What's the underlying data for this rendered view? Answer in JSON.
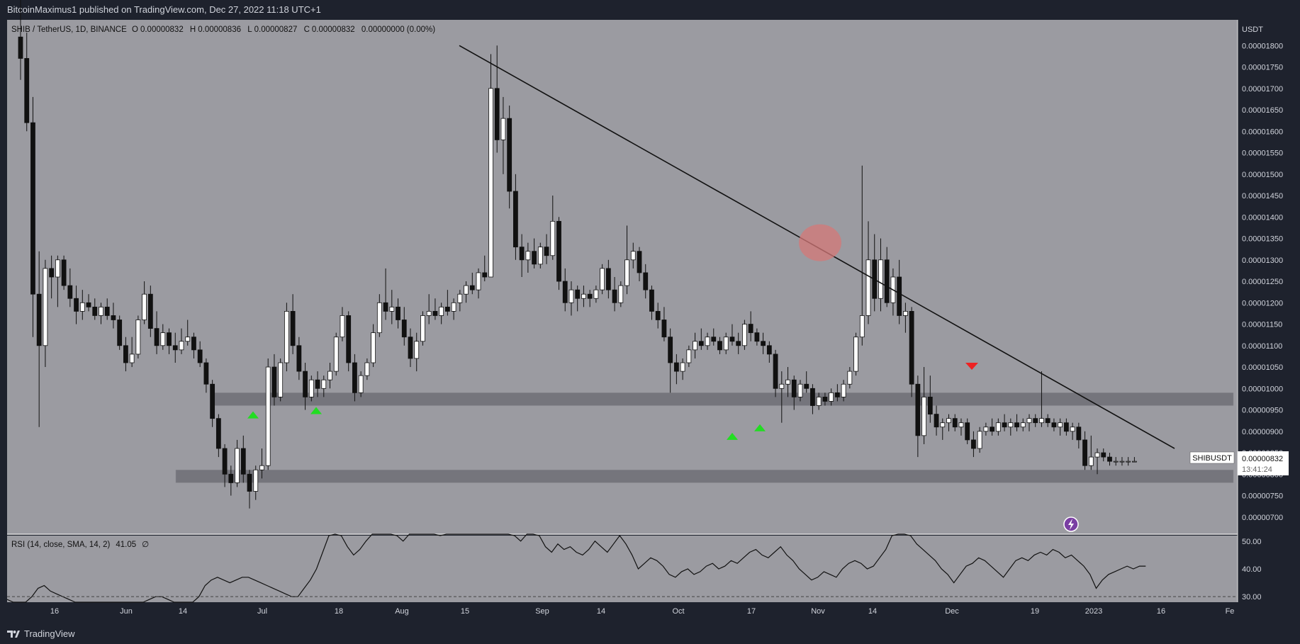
{
  "header": {
    "published_line": "BitcoinMaximus1 published on TradingView.com, Dec 27, 2022 11:18 UTC+1"
  },
  "legend": {
    "symbol": "SHIB / TetherUS, 1D, BINANCE",
    "o_label": "O",
    "o": "0.00000832",
    "h_label": "H",
    "h": "0.00000836",
    "l_label": "L",
    "l": "0.00000827",
    "c_label": "C",
    "c": "0.00000832",
    "change": "0.00000000 (0.00%)"
  },
  "price_scale": {
    "unit": "USDT",
    "labels": [
      "0.00001800",
      "0.00001750",
      "0.00001700",
      "0.00001650",
      "0.00001600",
      "0.00001550",
      "0.00001500",
      "0.00001450",
      "0.00001400",
      "0.00001350",
      "0.00001300",
      "0.00001250",
      "0.00001200",
      "0.00001150",
      "0.00001100",
      "0.00001050",
      "0.00001000",
      "0.00000950",
      "0.00000900",
      "0.00000850",
      "0.00000800",
      "0.00000750",
      "0.00000700"
    ]
  },
  "last_price": {
    "ticker": "SHIBUSDT",
    "price": "0.00000832",
    "countdown": "13:41:24"
  },
  "rsi": {
    "legend": "RSI (14, close, SMA, 14, 2)",
    "value": "41.05",
    "extra": "∅",
    "scale": [
      "50.00",
      "40.00",
      "30.00"
    ]
  },
  "time_axis": [
    "16",
    "Jun",
    "14",
    "Jul",
    "18",
    "Aug",
    "15",
    "Sep",
    "14",
    "Oct",
    "17",
    "Nov",
    "14",
    "Dec",
    "19",
    "2023",
    "16",
    "Fe"
  ],
  "footer": {
    "brand": "TradingView"
  },
  "colors": {
    "pane_bg": "#9b9ba1",
    "up": "#ffffff",
    "down": "#111111",
    "support_zone": "#6f6f75",
    "buy_arrow": "#22dd22",
    "sell_arrow": "#ee2222",
    "highlight": "#d47878"
  },
  "chart_data": {
    "type": "candlestick",
    "symbol": "SHIB / TetherUS",
    "interval": "1D",
    "exchange": "BINANCE",
    "ylim": [
      6.6e-06,
      1.86e-05
    ],
    "y_unit": "USDT",
    "candles": [
      [
        1.82e-05,
        1.95e-05,
        1.72e-05,
        1.77e-05
      ],
      [
        1.77e-05,
        1.83e-05,
        1.6e-05,
        1.62e-05
      ],
      [
        1.62e-05,
        1.68e-05,
        1.12e-05,
        1.22e-05
      ],
      [
        1.22e-05,
        1.32e-05,
        9.1e-06,
        1.1e-05
      ],
      [
        1.1e-05,
        1.3e-05,
        1.05e-05,
        1.28e-05
      ],
      [
        1.28e-05,
        1.31e-05,
        1.21e-05,
        1.26e-05
      ],
      [
        1.26e-05,
        1.31e-05,
        1.19e-05,
        1.3e-05
      ],
      [
        1.3e-05,
        1.31e-05,
        1.23e-05,
        1.24e-05
      ],
      [
        1.24e-05,
        1.28e-05,
        1.19e-05,
        1.21e-05
      ],
      [
        1.21e-05,
        1.24e-05,
        1.15e-05,
        1.18e-05
      ],
      [
        1.18e-05,
        1.23e-05,
        1.16e-05,
        1.2e-05
      ],
      [
        1.2e-05,
        1.22e-05,
        1.18e-05,
        1.19e-05
      ],
      [
        1.19e-05,
        1.21e-05,
        1.16e-05,
        1.17e-05
      ],
      [
        1.17e-05,
        1.2e-05,
        1.15e-05,
        1.19e-05
      ],
      [
        1.19e-05,
        1.21e-05,
        1.16e-05,
        1.17e-05
      ],
      [
        1.17e-05,
        1.2e-05,
        1.14e-05,
        1.16e-05
      ],
      [
        1.16e-05,
        1.17e-05,
        1.09e-05,
        1.1e-05
      ],
      [
        1.1e-05,
        1.12e-05,
        1.04e-05,
        1.06e-05
      ],
      [
        1.06e-05,
        1.12e-05,
        1.05e-05,
        1.08e-05
      ],
      [
        1.08e-05,
        1.17e-05,
        1.07e-05,
        1.16e-05
      ],
      [
        1.16e-05,
        1.25e-05,
        1.15e-05,
        1.22e-05
      ],
      [
        1.22e-05,
        1.24e-05,
        1.12e-05,
        1.14e-05
      ],
      [
        1.14e-05,
        1.18e-05,
        1.08e-05,
        1.1e-05
      ],
      [
        1.1e-05,
        1.15e-05,
        1.09e-05,
        1.13e-05
      ],
      [
        1.13e-05,
        1.14e-05,
        1.08e-05,
        1.1e-05
      ],
      [
        1.1e-05,
        1.13e-05,
        1.06e-05,
        1.09e-05
      ],
      [
        1.09e-05,
        1.14e-05,
        1.08e-05,
        1.11e-05
      ],
      [
        1.11e-05,
        1.16e-05,
        1.1e-05,
        1.12e-05
      ],
      [
        1.12e-05,
        1.13e-05,
        1.07e-05,
        1.09e-05
      ],
      [
        1.09e-05,
        1.11e-05,
        1.05e-05,
        1.06e-05
      ],
      [
        1.06e-05,
        1.07e-05,
        9.9e-06,
        1.01e-05
      ],
      [
        1.01e-05,
        1.02e-05,
        9.1e-06,
        9.3e-06
      ],
      [
        9.3e-06,
        9.4e-06,
        8.4e-06,
        8.6e-06
      ],
      [
        8.6e-06,
        8.7e-06,
        7.7e-06,
        8e-06
      ],
      [
        8e-06,
        8.2e-06,
        7.5e-06,
        7.8e-06
      ],
      [
        7.8e-06,
        8.8e-06,
        7.7e-06,
        8.6e-06
      ],
      [
        8.6e-06,
        8.9e-06,
        7.8e-06,
        8e-06
      ],
      [
        8e-06,
        8.1e-06,
        7.2e-06,
        7.6e-06
      ],
      [
        7.6e-06,
        8.2e-06,
        7.4e-06,
        8.1e-06
      ],
      [
        8.1e-06,
        8.6e-06,
        7.9e-06,
        8.2e-06
      ],
      [
        8.2e-06,
        1.07e-05,
        8.1e-06,
        1.05e-05
      ],
      [
        1.05e-05,
        1.08e-05,
        9.6e-06,
        9.8e-06
      ],
      [
        9.8e-06,
        1.07e-05,
        9.7e-06,
        1.06e-05
      ],
      [
        1.06e-05,
        1.2e-05,
        1.04e-05,
        1.18e-05
      ],
      [
        1.18e-05,
        1.22e-05,
        1.08e-05,
        1.1e-05
      ],
      [
        1.1e-05,
        1.12e-05,
        1.02e-05,
        1.04e-05
      ],
      [
        1.04e-05,
        1.06e-05,
        9.5e-06,
        9.8e-06
      ],
      [
        9.8e-06,
        1.03e-05,
        9.7e-06,
        1.02e-05
      ],
      [
        1.02e-05,
        1.04e-05,
        9.8e-06,
        1e-05
      ],
      [
        1e-05,
        1.03e-05,
        9.8e-06,
        1.02e-05
      ],
      [
        1.02e-05,
        1.06e-05,
        1e-05,
        1.04e-05
      ],
      [
        1.04e-05,
        1.13e-05,
        1.03e-05,
        1.12e-05
      ],
      [
        1.12e-05,
        1.19e-05,
        1.11e-05,
        1.17e-05
      ],
      [
        1.17e-05,
        1.18e-05,
        1.04e-05,
        1.06e-05
      ],
      [
        1.06e-05,
        1.08e-05,
        9.7e-06,
        9.9e-06
      ],
      [
        9.9e-06,
        1.04e-05,
        9.8e-06,
        1.03e-05
      ],
      [
        1.03e-05,
        1.07e-05,
        1.02e-05,
        1.06e-05
      ],
      [
        1.06e-05,
        1.15e-05,
        1.05e-05,
        1.13e-05
      ],
      [
        1.13e-05,
        1.22e-05,
        1.12e-05,
        1.2e-05
      ],
      [
        1.2e-05,
        1.28e-05,
        1.16e-05,
        1.18e-05
      ],
      [
        1.18e-05,
        1.23e-05,
        1.15e-05,
        1.19e-05
      ],
      [
        1.19e-05,
        1.21e-05,
        1.14e-05,
        1.16e-05
      ],
      [
        1.16e-05,
        1.19e-05,
        1.1e-05,
        1.12e-05
      ],
      [
        1.12e-05,
        1.14e-05,
        1.05e-05,
        1.07e-05
      ],
      [
        1.07e-05,
        1.13e-05,
        1.04e-05,
        1.11e-05
      ],
      [
        1.11e-05,
        1.18e-05,
        1.1e-05,
        1.17e-05
      ],
      [
        1.17e-05,
        1.22e-05,
        1.15e-05,
        1.18e-05
      ],
      [
        1.18e-05,
        1.21e-05,
        1.16e-05,
        1.17e-05
      ],
      [
        1.17e-05,
        1.2e-05,
        1.15e-05,
        1.19e-05
      ],
      [
        1.19e-05,
        1.23e-05,
        1.17e-05,
        1.18e-05
      ],
      [
        1.18e-05,
        1.21e-05,
        1.16e-05,
        1.2e-05
      ],
      [
        1.2e-05,
        1.23e-05,
        1.18e-05,
        1.22e-05
      ],
      [
        1.22e-05,
        1.25e-05,
        1.2e-05,
        1.24e-05
      ],
      [
        1.24e-05,
        1.27e-05,
        1.22e-05,
        1.23e-05
      ],
      [
        1.23e-05,
        1.28e-05,
        1.21e-05,
        1.27e-05
      ],
      [
        1.27e-05,
        1.31e-05,
        1.25e-05,
        1.26e-05
      ],
      [
        1.26e-05,
        1.78e-05,
        1.26e-05,
        1.7e-05
      ],
      [
        1.7e-05,
        1.8e-05,
        1.55e-05,
        1.58e-05
      ],
      [
        1.58e-05,
        1.68e-05,
        1.5e-05,
        1.63e-05
      ],
      [
        1.63e-05,
        1.66e-05,
        1.42e-05,
        1.46e-05
      ],
      [
        1.46e-05,
        1.5e-05,
        1.3e-05,
        1.33e-05
      ],
      [
        1.33e-05,
        1.36e-05,
        1.26e-05,
        1.3e-05
      ],
      [
        1.3e-05,
        1.34e-05,
        1.27e-05,
        1.32e-05
      ],
      [
        1.32e-05,
        1.35e-05,
        1.28e-05,
        1.29e-05
      ],
      [
        1.29e-05,
        1.34e-05,
        1.28e-05,
        1.33e-05
      ],
      [
        1.33e-05,
        1.36e-05,
        1.29e-05,
        1.31e-05
      ],
      [
        1.31e-05,
        1.45e-05,
        1.3e-05,
        1.39e-05
      ],
      [
        1.39e-05,
        1.4e-05,
        1.23e-05,
        1.25e-05
      ],
      [
        1.25e-05,
        1.28e-05,
        1.18e-05,
        1.2e-05
      ],
      [
        1.2e-05,
        1.25e-05,
        1.17e-05,
        1.23e-05
      ],
      [
        1.23e-05,
        1.24e-05,
        1.18e-05,
        1.21e-05
      ],
      [
        1.21e-05,
        1.24e-05,
        1.19e-05,
        1.22e-05
      ],
      [
        1.22e-05,
        1.23e-05,
        1.19e-05,
        1.21e-05
      ],
      [
        1.21e-05,
        1.24e-05,
        1.2e-05,
        1.23e-05
      ],
      [
        1.23e-05,
        1.29e-05,
        1.22e-05,
        1.28e-05
      ],
      [
        1.28e-05,
        1.3e-05,
        1.21e-05,
        1.23e-05
      ],
      [
        1.23e-05,
        1.26e-05,
        1.18e-05,
        1.2e-05
      ],
      [
        1.2e-05,
        1.25e-05,
        1.19e-05,
        1.24e-05
      ],
      [
        1.24e-05,
        1.38e-05,
        1.22e-05,
        1.3e-05
      ],
      [
        1.3e-05,
        1.34e-05,
        1.28e-05,
        1.32e-05
      ],
      [
        1.32e-05,
        1.33e-05,
        1.25e-05,
        1.27e-05
      ],
      [
        1.27e-05,
        1.29e-05,
        1.21e-05,
        1.23e-05
      ],
      [
        1.23e-05,
        1.24e-05,
        1.16e-05,
        1.18e-05
      ],
      [
        1.18e-05,
        1.2e-05,
        1.14e-05,
        1.16e-05
      ],
      [
        1.16e-05,
        1.19e-05,
        1.11e-05,
        1.12e-05
      ],
      [
        1.12e-05,
        1.14e-05,
        9.9e-06,
        1.06e-05
      ],
      [
        1.06e-05,
        1.08e-05,
        1.01e-05,
        1.04e-05
      ],
      [
        1.04e-05,
        1.07e-05,
        1.02e-05,
        1.06e-05
      ],
      [
        1.06e-05,
        1.1e-05,
        1.05e-05,
        1.09e-05
      ],
      [
        1.09e-05,
        1.13e-05,
        1.07e-05,
        1.11e-05
      ],
      [
        1.11e-05,
        1.14e-05,
        1.09e-05,
        1.1e-05
      ],
      [
        1.1e-05,
        1.13e-05,
        1.09e-05,
        1.12e-05
      ],
      [
        1.12e-05,
        1.14e-05,
        1.1e-05,
        1.11e-05
      ],
      [
        1.11e-05,
        1.12e-05,
        1.08e-05,
        1.09e-05
      ],
      [
        1.09e-05,
        1.13e-05,
        1.08e-05,
        1.12e-05
      ],
      [
        1.12e-05,
        1.15e-05,
        1.1e-05,
        1.11e-05
      ],
      [
        1.11e-05,
        1.13e-05,
        1.08e-05,
        1.1e-05
      ],
      [
        1.1e-05,
        1.16e-05,
        1.09e-05,
        1.15e-05
      ],
      [
        1.15e-05,
        1.18e-05,
        1.11e-05,
        1.13e-05
      ],
      [
        1.13e-05,
        1.14e-05,
        1.1e-05,
        1.11e-05
      ],
      [
        1.11e-05,
        1.13e-05,
        1.08e-05,
        1.1e-05
      ],
      [
        1.1e-05,
        1.11e-05,
        1.06e-05,
        1.08e-05
      ],
      [
        1.08e-05,
        1.09e-05,
        9.8e-06,
        1e-05
      ],
      [
        1e-05,
        1.04e-05,
        9.2e-06,
        1.01e-05
      ],
      [
        1.01e-05,
        1.05e-05,
        9.8e-06,
        1.02e-05
      ],
      [
        1.02e-05,
        1.03e-05,
        9.5e-06,
        9.8e-06
      ],
      [
        9.8e-06,
        1.02e-05,
        9.7e-06,
        1.01e-05
      ],
      [
        1.01e-05,
        1.04e-05,
        9.9e-06,
        1e-05
      ],
      [
        1e-05,
        1.01e-05,
        9.4e-06,
        9.6e-06
      ],
      [
        9.6e-06,
        9.9e-06,
        9.5e-06,
        9.8e-06
      ],
      [
        9.8e-06,
        9.9e-06,
        9.6e-06,
        9.7e-06
      ],
      [
        9.7e-06,
        1e-05,
        9.6e-06,
        9.9e-06
      ],
      [
        9.9e-06,
        1.01e-05,
        9.7e-06,
        9.8e-06
      ],
      [
        9.8e-06,
        1.02e-05,
        9.7e-06,
        1.01e-05
      ],
      [
        1.01e-05,
        1.05e-05,
        1e-05,
        1.04e-05
      ],
      [
        1.04e-05,
        1.13e-05,
        1.03e-05,
        1.12e-05
      ],
      [
        1.12e-05,
        1.52e-05,
        1.1e-05,
        1.17e-05
      ],
      [
        1.17e-05,
        1.39e-05,
        1.15e-05,
        1.3e-05
      ],
      [
        1.3e-05,
        1.36e-05,
        1.18e-05,
        1.21e-05
      ],
      [
        1.21e-05,
        1.35e-05,
        1.18e-05,
        1.3e-05
      ],
      [
        1.3e-05,
        1.33e-05,
        1.19e-05,
        1.2e-05
      ],
      [
        1.2e-05,
        1.28e-05,
        1.17e-05,
        1.26e-05
      ],
      [
        1.26e-05,
        1.3e-05,
        1.15e-05,
        1.17e-05
      ],
      [
        1.17e-05,
        1.2e-05,
        1.13e-05,
        1.18e-05
      ],
      [
        1.18e-05,
        1.19e-05,
        9.8e-06,
        1.01e-05
      ],
      [
        1.01e-05,
        1.03e-05,
        8.4e-06,
        8.9e-06
      ],
      [
        8.9e-06,
        1.05e-05,
        8.7e-06,
        9.8e-06
      ],
      [
        9.8e-06,
        1.03e-05,
        9.2e-06,
        9.4e-06
      ],
      [
        9.4e-06,
        9.6e-06,
        8.9e-06,
        9.1e-06
      ],
      [
        9.1e-06,
        9.3e-06,
        8.8e-06,
        9.2e-06
      ],
      [
        9.2e-06,
        9.4e-06,
        9e-06,
        9.3e-06
      ],
      [
        9.3e-06,
        9.4e-06,
        9e-06,
        9.1e-06
      ],
      [
        9.1e-06,
        9.3e-06,
        8.9e-06,
        9.2e-06
      ],
      [
        9.2e-06,
        9.3e-06,
        8.7e-06,
        8.8e-06
      ],
      [
        8.8e-06,
        9e-06,
        8.4e-06,
        8.6e-06
      ],
      [
        8.6e-06,
        9.1e-06,
        8.5e-06,
        9e-06
      ],
      [
        9e-06,
        9.2e-06,
        8.9e-06,
        9.1e-06
      ],
      [
        9.1e-06,
        9.3e-06,
        8.9e-06,
        9e-06
      ],
      [
        9e-06,
        9.3e-06,
        8.9e-06,
        9.2e-06
      ],
      [
        9.2e-06,
        9.4e-06,
        9e-06,
        9.1e-06
      ],
      [
        9.1e-06,
        9.3e-06,
        8.9e-06,
        9.2e-06
      ],
      [
        9.2e-06,
        9.4e-06,
        9e-06,
        9.1e-06
      ],
      [
        9.1e-06,
        9.3e-06,
        9e-06,
        9.2e-06
      ],
      [
        9.2e-06,
        9.4e-06,
        9e-06,
        9.3e-06
      ],
      [
        9.3e-06,
        9.4e-06,
        9.1e-06,
        9.2e-06
      ],
      [
        9.2e-06,
        1.04e-05,
        9.1e-06,
        9.3e-06
      ],
      [
        9.3e-06,
        9.4e-06,
        9.1e-06,
        9.2e-06
      ],
      [
        9.2e-06,
        9.3e-06,
        9e-06,
        9.1e-06
      ],
      [
        9.1e-06,
        9.3e-06,
        8.9e-06,
        9.2e-06
      ],
      [
        9.2e-06,
        9.3e-06,
        8.9e-06,
        9e-06
      ],
      [
        9e-06,
        9.2e-06,
        8.8e-06,
        9.1e-06
      ],
      [
        9.1e-06,
        9.2e-06,
        8.6e-06,
        8.8e-06
      ],
      [
        8.8e-06,
        9e-06,
        8.1e-06,
        8.2e-06
      ],
      [
        8.2e-06,
        8.9e-06,
        8.1e-06,
        8.4e-06
      ],
      [
        8.4e-06,
        8.6e-06,
        8e-06,
        8.5e-06
      ],
      [
        8.5e-06,
        8.6e-06,
        8.3e-06,
        8.4e-06
      ],
      [
        8.4e-06,
        8.5e-06,
        8.2e-06,
        8.3e-06
      ],
      [
        8.3e-06,
        8.4e-06,
        8.2e-06,
        8.3e-06
      ],
      [
        8.3e-06,
        8.4e-06,
        8.2e-06,
        8.3e-06
      ],
      [
        8.3e-06,
        8.4e-06,
        8.2e-06,
        8.3e-06
      ],
      [
        8.3e-06,
        8.4e-06,
        8.3e-06,
        8.3e-06
      ]
    ],
    "support_zones": [
      [
        9.6e-06,
        9.9e-06
      ],
      [
        7.8e-06,
        8.1e-06
      ]
    ],
    "trendline": [
      [
        1.8e-05,
        8.6e-06
      ]
    ],
    "buy_arrow_levels": [
      9.4e-06,
      9.5e-06,
      8.9e-06,
      9.1e-06
    ],
    "sell_arrow_level": 1.05e-05,
    "rsi_values": [
      29,
      28,
      27,
      27,
      30,
      33,
      34,
      32,
      31,
      30,
      29,
      28,
      28,
      27,
      26,
      26,
      25,
      24,
      24,
      25,
      26,
      27,
      28,
      29,
      30,
      30,
      29,
      28,
      26,
      25,
      27,
      30,
      34,
      36,
      37,
      36,
      35,
      36,
      37,
      37,
      36,
      35,
      34,
      33,
      32,
      31,
      30,
      30,
      33,
      36,
      40,
      46,
      52,
      56,
      52,
      48,
      45,
      47,
      50,
      54,
      58,
      60,
      57,
      52,
      50,
      54,
      57,
      60,
      58,
      55,
      52,
      53,
      55,
      58,
      60,
      59,
      57,
      61,
      63,
      60,
      58,
      56,
      52,
      50,
      53,
      55,
      52,
      48,
      46,
      49,
      47,
      48,
      46,
      45,
      47,
      50,
      48,
      46,
      49,
      52,
      49,
      45,
      40,
      42,
      44,
      43,
      41,
      38,
      37,
      39,
      40,
      38,
      39,
      41,
      42,
      40,
      41,
      43,
      42,
      44,
      46,
      47,
      45,
      44,
      46,
      48,
      45,
      43,
      40,
      38,
      36,
      37,
      39,
      38,
      37,
      40,
      42,
      43,
      42,
      40,
      41,
      44,
      47,
      52,
      55,
      57,
      52,
      49,
      47,
      45,
      43,
      40,
      38,
      35,
      38,
      41,
      42,
      44,
      43,
      41,
      39,
      37,
      40,
      43,
      44,
      43,
      45,
      46,
      45,
      47,
      46,
      44,
      45,
      43,
      41,
      38,
      33,
      36,
      38,
      39,
      40,
      41,
      40,
      41,
      41
    ],
    "rsi_ylim": [
      28,
      52
    ],
    "time_labels": [
      "16",
      "Jun",
      "14",
      "Jul",
      "18",
      "Aug",
      "15",
      "Sep",
      "14",
      "Oct",
      "17",
      "Nov",
      "14",
      "Dec",
      "19",
      "2023",
      "16",
      "Fe"
    ]
  }
}
